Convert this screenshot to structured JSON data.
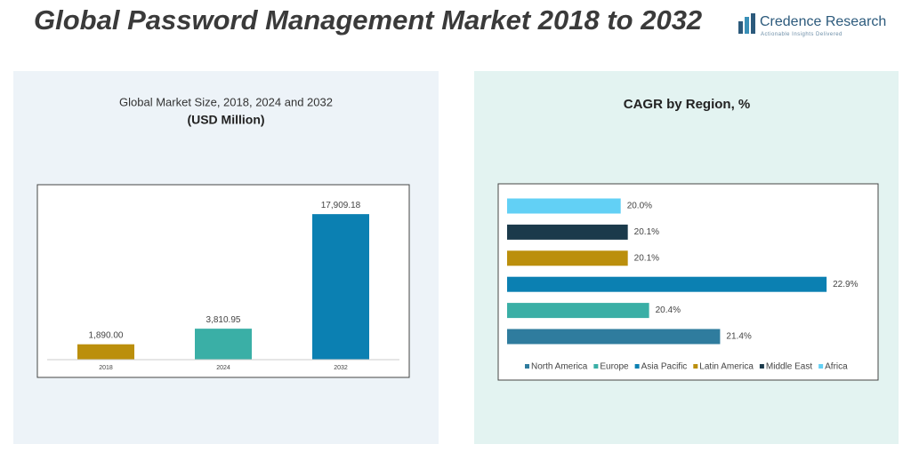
{
  "title": "Global Password Management Market 2018 to 2032",
  "logo": {
    "name": "Credence Research",
    "tagline": "Actionable Insights Delivered"
  },
  "chart_data": [
    {
      "type": "bar",
      "title": "Global Market Size, 2018, 2024 and 2032",
      "subtitle": "(USD Million)",
      "categories": [
        "2018",
        "2024",
        "2032"
      ],
      "values": [
        1890.0,
        3810.95,
        17909.18
      ],
      "value_labels": [
        "1,890.00",
        "3,810.95",
        "17,909.18"
      ],
      "colors": [
        "#bb8f0c",
        "#3aafa6",
        "#0b80b2"
      ],
      "ylim": [
        0,
        20000
      ]
    },
    {
      "type": "hbar",
      "title": "CAGR by Region, %",
      "categories": [
        "North America",
        "Europe",
        "Asia Pacific",
        "Latin America",
        "Middle East",
        "Africa"
      ],
      "values": [
        21.4,
        20.4,
        22.9,
        20.1,
        20.1,
        20.0
      ],
      "value_labels": [
        "21.4%",
        "20.4%",
        "22.9%",
        "20.1%",
        "20.1%",
        "20.0%"
      ],
      "colors": [
        "#2f7c9e",
        "#3aafa6",
        "#0b80b2",
        "#bb8f0c",
        "#1b3a4b",
        "#62d0f5"
      ],
      "xlim": [
        18.4,
        23.6
      ],
      "legend": "bottom"
    }
  ]
}
